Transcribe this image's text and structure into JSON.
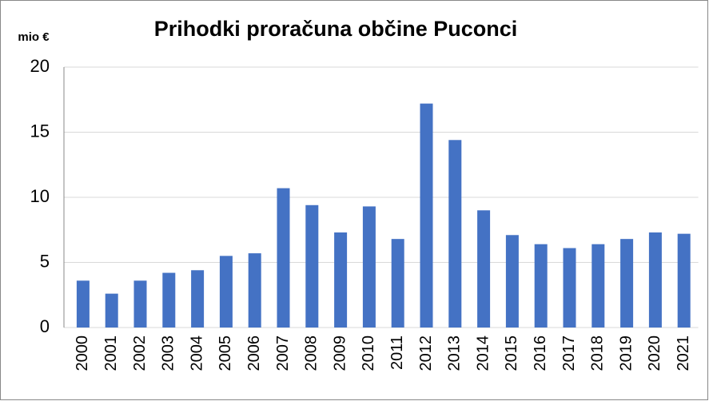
{
  "chart_data": {
    "type": "bar",
    "title": "Prihodki proračuna občine Puconci",
    "y_label": "mio €",
    "categories": [
      "2000",
      "2001",
      "2002",
      "2003",
      "2004",
      "2005",
      "2006",
      "2007",
      "2008",
      "2009",
      "2010",
      "2011",
      "2012",
      "2013",
      "2014",
      "2015",
      "2016",
      "2017",
      "2018",
      "2019",
      "2020",
      "2021"
    ],
    "values": [
      3.6,
      2.6,
      3.6,
      4.2,
      4.4,
      5.5,
      5.7,
      10.7,
      9.4,
      7.3,
      9.3,
      6.8,
      17.2,
      14.4,
      9.0,
      7.1,
      6.4,
      6.1,
      6.4,
      6.8,
      7.3,
      7.2
    ],
    "color": "#4472c4",
    "ylim": [
      0,
      20
    ],
    "yticks": [
      0,
      5,
      10,
      15,
      20
    ],
    "grid": true
  }
}
